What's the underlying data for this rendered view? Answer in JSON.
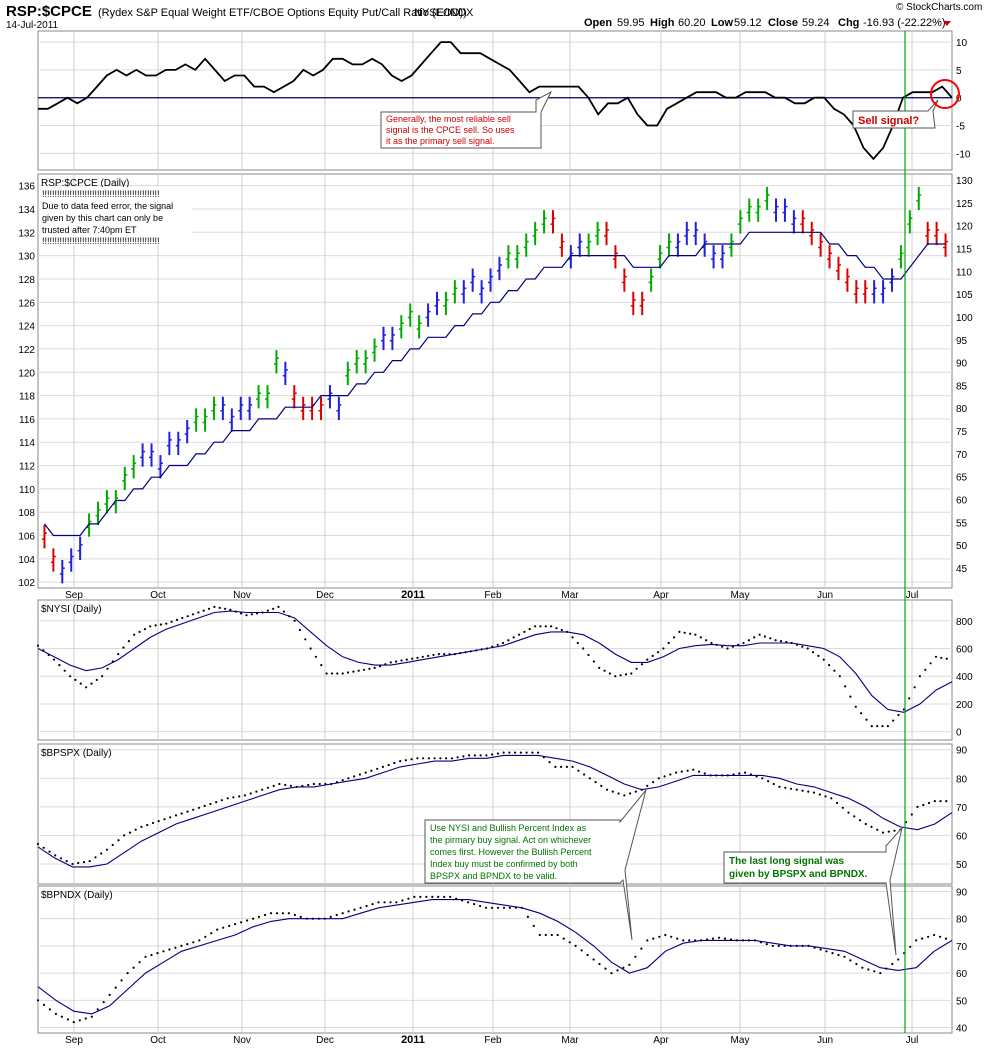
{
  "header": {
    "symbol": "RSP:$CPCE",
    "description": "(Rydex S&P Equal Weight ETF/CBOE Options Equity Put/Call Ratio (EOD))",
    "exchange": "NYSE/INDX",
    "date": "14-Jul-2011",
    "open_label": "Open",
    "open": "59.95",
    "high_label": "High",
    "high": "60.20",
    "low_label": "Low",
    "low": "59.12",
    "close_label": "Close",
    "close": "59.24",
    "chg_label": "Chg",
    "chg": "-16.93 (-22.22%)",
    "watermark": "© StockCharts.com"
  },
  "annotations": {
    "sell_note": [
      "Generally, the most reliable sell",
      "signal is the CPCE sell. So uses",
      "it as the primary sell signal."
    ],
    "sell_signal": "Sell signal?",
    "data_feed_note": [
      "!!!!!!!!!!!!!!!!!!!!!!!!!!!!!!!!!!!!!!!!!!!!!!!",
      "Due to data feed error, the signal",
      "given by this chart can only be",
      "trusted after 7:40pm ET",
      "!!!!!!!!!!!!!!!!!!!!!!!!!!!!!!!!!!!!!!!!!!!!!!!"
    ],
    "buy_note": [
      "Use NYSI and Bullish Percent Index as",
      "the pirmary buy signal. Act on whichever",
      "comes first. However the Bullish Percent",
      "Index buy must be confirmed by both",
      "BPSPX and BPNDX to be valid."
    ],
    "long_signal": [
      "The last long signal was",
      "given by BPSPX and BPNDX."
    ]
  },
  "chart_data": [
    {
      "type": "line",
      "panel": "oscillator",
      "title": "",
      "yticks": [
        10,
        5,
        0,
        -5,
        -10
      ],
      "ylim": [
        -13,
        12
      ],
      "series": [
        {
          "name": "oscillator",
          "color": "#000000",
          "values": [
            -2,
            -2,
            -1,
            0,
            -1,
            0,
            2,
            4,
            5,
            4,
            5,
            4,
            4,
            5,
            5,
            6,
            5,
            7,
            5,
            3,
            4,
            4,
            2,
            2,
            1,
            2,
            3,
            5,
            4,
            5,
            7,
            7,
            6,
            6,
            7,
            6,
            4,
            3,
            4,
            6,
            8,
            10,
            10,
            8,
            8,
            8,
            7,
            6,
            5,
            3,
            1,
            2,
            2,
            2,
            2,
            2,
            0,
            -3,
            -1,
            -1,
            0,
            -3,
            -5,
            -5,
            -2,
            -1,
            0,
            1,
            1,
            1,
            0,
            0,
            1,
            1,
            1,
            0,
            0,
            -1,
            -1,
            0,
            0,
            -2,
            -3,
            -5,
            -9,
            -11,
            -9,
            -5,
            0,
            1,
            1,
            1,
            2,
            0
          ]
        }
      ],
      "x_labels": [
        "Sep",
        "Oct",
        "Nov",
        "Dec",
        "2011",
        "Feb",
        "Mar",
        "Apr",
        "May",
        "Jun",
        "Jul"
      ]
    },
    {
      "type": "ohlc",
      "panel": "price",
      "title": "RSP:$CPCE (Daily)",
      "yticks": [
        136,
        134,
        132,
        130,
        128,
        126,
        124,
        122,
        120,
        118,
        116,
        114,
        112,
        110,
        108,
        106,
        104,
        102
      ],
      "yticks_right": [
        130,
        125,
        120,
        115,
        110,
        105,
        100,
        95,
        90,
        85,
        80,
        75,
        70,
        65,
        60,
        55,
        50,
        45
      ],
      "ylim": [
        101.5,
        137
      ],
      "series": [
        {
          "name": "price",
          "color": "#000000",
          "values": [
            106,
            104,
            103,
            104,
            105,
            107,
            108,
            109,
            109,
            111,
            112,
            113,
            113,
            112,
            114,
            114,
            115,
            116,
            116,
            117,
            117,
            116,
            117,
            117,
            118,
            118,
            121,
            120,
            118,
            117,
            117,
            117,
            118,
            117,
            120,
            121,
            121,
            122,
            123,
            123,
            124,
            125,
            124,
            125,
            126,
            126,
            127,
            127,
            128,
            127,
            128,
            129,
            130,
            130,
            131,
            132,
            133,
            133,
            131,
            130,
            131,
            131,
            132,
            132,
            130,
            128,
            126,
            126,
            128,
            130,
            131,
            131,
            132,
            132,
            131,
            130,
            130,
            131,
            133,
            134,
            134,
            135,
            134,
            134,
            133,
            133,
            132,
            131,
            130,
            129,
            128,
            127,
            127,
            127,
            127,
            128,
            130,
            133,
            135,
            132,
            132,
            131
          ]
        },
        {
          "name": "moving-average",
          "color": "#000080",
          "values": [
            107,
            106,
            106,
            106,
            106,
            107,
            107,
            108,
            109,
            109,
            110,
            110,
            111,
            111,
            112,
            112,
            112,
            113,
            113,
            114,
            114,
            115,
            115,
            115,
            116,
            116,
            116,
            117,
            117,
            117,
            117,
            118,
            118,
            118,
            118,
            119,
            119,
            120,
            120,
            121,
            121,
            122,
            122,
            123,
            123,
            123,
            124,
            124,
            125,
            125,
            126,
            126,
            127,
            127,
            128,
            128,
            129,
            129,
            129,
            130,
            130,
            130,
            130,
            130,
            130,
            130,
            129,
            129,
            129,
            129,
            130,
            130,
            130,
            130,
            131,
            131,
            131,
            131,
            131,
            132,
            132,
            132,
            132,
            132,
            132,
            132,
            132,
            132,
            131,
            131,
            130,
            130,
            129,
            129,
            128,
            128,
            128,
            129,
            130,
            131,
            131,
            131
          ]
        }
      ],
      "x_labels": [
        "Sep",
        "Oct",
        "Nov",
        "Dec",
        "2011",
        "Feb",
        "Mar",
        "Apr",
        "May",
        "Jun",
        "Jul"
      ]
    },
    {
      "type": "line",
      "panel": "nysi",
      "title": "$NYSI (Daily)",
      "yticks": [
        800,
        600,
        400,
        200,
        0
      ],
      "ylim": [
        -60,
        950
      ],
      "series": [
        {
          "name": "NYSI",
          "color": "#000000",
          "values": [
            620,
            520,
            400,
            320,
            400,
            560,
            700,
            760,
            780,
            820,
            860,
            900,
            880,
            840,
            860,
            900,
            800,
            600,
            420,
            420,
            440,
            460,
            500,
            520,
            540,
            560,
            560,
            580,
            600,
            640,
            700,
            760,
            760,
            720,
            600,
            460,
            400,
            420,
            520,
            600,
            720,
            700,
            640,
            600,
            640,
            700,
            660,
            640,
            600,
            520,
            400,
            180,
            40,
            40,
            160,
            400,
            540,
            520
          ]
        },
        {
          "name": "moving-average",
          "color": "#000080",
          "values": [
            600,
            540,
            480,
            440,
            460,
            520,
            600,
            680,
            740,
            780,
            820,
            860,
            870,
            860,
            860,
            860,
            820,
            720,
            620,
            540,
            500,
            480,
            480,
            500,
            520,
            540,
            560,
            580,
            600,
            620,
            660,
            700,
            720,
            720,
            700,
            640,
            560,
            500,
            500,
            540,
            600,
            620,
            630,
            620,
            620,
            640,
            640,
            640,
            620,
            600,
            540,
            420,
            260,
            160,
            140,
            200,
            300,
            360
          ]
        }
      ],
      "x_labels": [
        "Sep",
        "Oct",
        "Nov",
        "Dec",
        "2011",
        "Feb",
        "Mar",
        "Apr",
        "May",
        "Jun",
        "Jul"
      ]
    },
    {
      "type": "line",
      "panel": "bpspx",
      "title": "$BPSPX (Daily)",
      "yticks": [
        90,
        80,
        70,
        60,
        50
      ],
      "ylim": [
        43,
        92
      ],
      "series": [
        {
          "name": "BPSPX",
          "color": "#000000",
          "values": [
            57,
            53,
            50,
            51,
            55,
            60,
            63,
            65,
            67,
            69,
            71,
            73,
            74,
            76,
            78,
            77,
            78,
            78,
            80,
            82,
            84,
            86,
            87,
            87,
            87,
            88,
            88,
            89,
            89,
            89,
            84,
            84,
            80,
            76,
            74,
            76,
            80,
            82,
            83,
            81,
            81,
            82,
            80,
            77,
            76,
            75,
            73,
            68,
            64,
            61,
            62,
            70,
            72,
            72
          ]
        },
        {
          "name": "moving-average",
          "color": "#000080",
          "values": [
            56,
            52,
            49,
            49,
            50,
            54,
            58,
            61,
            64,
            66,
            68,
            70,
            72,
            74,
            76,
            77,
            77,
            78,
            79,
            80,
            82,
            84,
            85,
            86,
            86,
            87,
            87,
            88,
            88,
            88,
            87,
            86,
            84,
            81,
            78,
            76,
            77,
            79,
            81,
            81,
            81,
            81,
            81,
            80,
            78,
            77,
            75,
            73,
            70,
            66,
            63,
            62,
            64,
            68
          ]
        }
      ],
      "x_labels": [
        "Sep",
        "Oct",
        "Nov",
        "Dec",
        "2011",
        "Feb",
        "Mar",
        "Apr",
        "May",
        "Jun",
        "Jul"
      ]
    },
    {
      "type": "line",
      "panel": "bpndx",
      "title": "$BPNDX (Daily)",
      "yticks": [
        90,
        80,
        70,
        60,
        50,
        40
      ],
      "ylim": [
        38,
        92
      ],
      "series": [
        {
          "name": "BPNDX",
          "color": "#000000",
          "values": [
            50,
            45,
            42,
            44,
            52,
            60,
            66,
            68,
            70,
            72,
            76,
            78,
            80,
            82,
            82,
            80,
            80,
            82,
            84,
            86,
            86,
            88,
            88,
            88,
            86,
            84,
            84,
            84,
            74,
            74,
            70,
            65,
            60,
            63,
            72,
            74,
            72,
            72,
            73,
            72,
            72,
            70,
            70,
            70,
            68,
            66,
            62,
            60,
            65,
            72,
            74,
            72
          ]
        },
        {
          "name": "moving-average",
          "color": "#000080",
          "values": [
            55,
            50,
            46,
            45,
            48,
            54,
            60,
            64,
            68,
            70,
            72,
            74,
            77,
            79,
            80,
            80,
            80,
            80,
            82,
            84,
            85,
            86,
            87,
            87,
            87,
            86,
            85,
            84,
            82,
            79,
            75,
            70,
            64,
            60,
            62,
            68,
            71,
            72,
            72,
            72,
            72,
            71,
            70,
            70,
            69,
            68,
            65,
            62,
            61,
            62,
            68,
            72
          ]
        }
      ],
      "x_labels": [
        "Sep",
        "Oct",
        "Nov",
        "Dec",
        "2011",
        "Feb",
        "Mar",
        "Apr",
        "May",
        "Jun",
        "Jul"
      ]
    }
  ]
}
